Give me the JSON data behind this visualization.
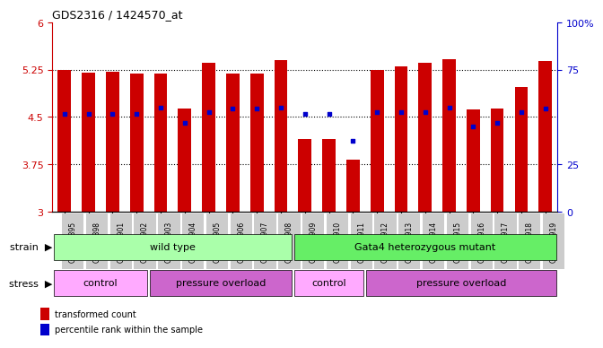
{
  "title": "GDS2316 / 1424570_at",
  "samples": [
    "GSM126895",
    "GSM126898",
    "GSM126901",
    "GSM126902",
    "GSM126903",
    "GSM126904",
    "GSM126905",
    "GSM126906",
    "GSM126907",
    "GSM126908",
    "GSM126909",
    "GSM126910",
    "GSM126911",
    "GSM126912",
    "GSM126913",
    "GSM126914",
    "GSM126915",
    "GSM126916",
    "GSM126917",
    "GSM126918",
    "GSM126919"
  ],
  "bar_heights": [
    5.25,
    5.2,
    5.22,
    5.18,
    5.19,
    4.63,
    5.35,
    5.19,
    5.19,
    5.4,
    4.15,
    4.15,
    3.82,
    5.25,
    5.3,
    5.35,
    5.42,
    4.62,
    4.63,
    4.97,
    5.38
  ],
  "blue_dot_y": [
    4.55,
    4.55,
    4.55,
    4.55,
    4.65,
    4.4,
    4.58,
    4.63,
    4.63,
    4.65,
    4.55,
    4.55,
    4.12,
    4.58,
    4.58,
    4.58,
    4.65,
    4.35,
    4.4,
    4.58,
    4.63
  ],
  "ylim_left": [
    3.0,
    6.0
  ],
  "yticks_left": [
    3.0,
    3.75,
    4.5,
    5.25,
    6.0
  ],
  "ytick_labels_left": [
    "3",
    "3.75",
    "4.5",
    "5.25",
    "6"
  ],
  "yticks_right": [
    0,
    25,
    75,
    100
  ],
  "ytick_labels_right": [
    "0",
    "25",
    "75",
    "100%"
  ],
  "bar_color": "#cc0000",
  "dot_color": "#0000cc",
  "bar_width": 0.55,
  "axis_left_color": "#cc0000",
  "axis_right_color": "#0000cc",
  "strain_wt_color": "#aaffaa",
  "strain_mut_color": "#66ee66",
  "stress_ctrl_color": "#ffaaff",
  "stress_press_color": "#cc66cc",
  "xtick_bg": "#cccccc",
  "legend_red_label": "transformed count",
  "legend_blue_label": "percentile rank within the sample"
}
